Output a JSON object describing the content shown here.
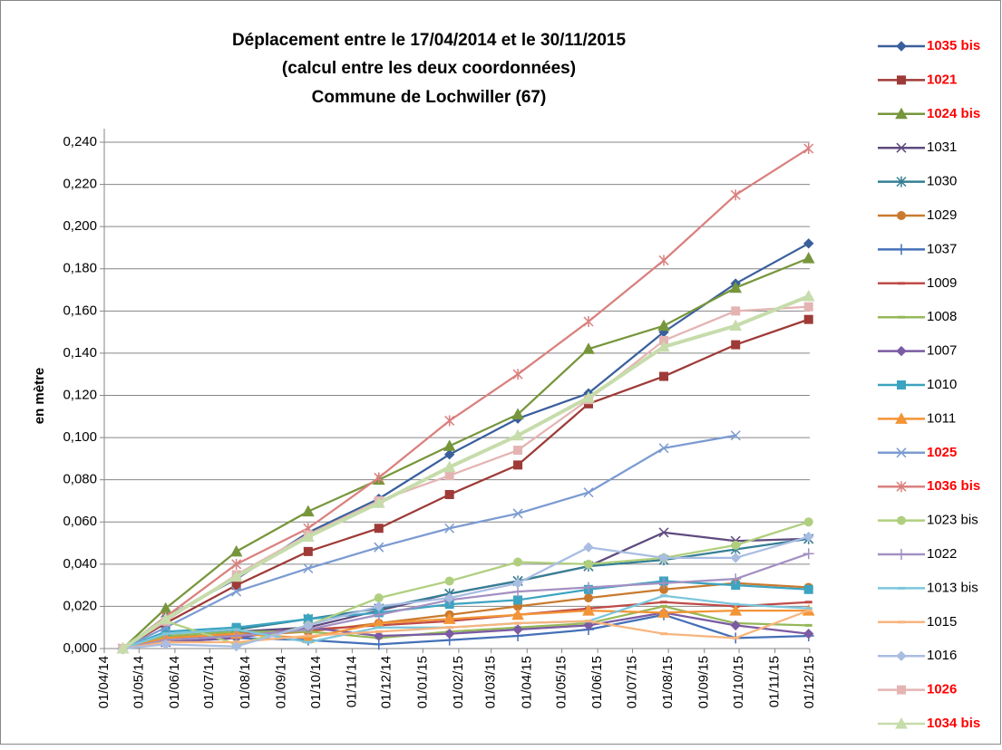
{
  "chart_data": {
    "type": "line",
    "title_lines": [
      "Déplacement entre le 17/04/2014 et le 30/11/2015",
      "(calcul entre les deux coordonnées)",
      "Commune de Lochwiller (67)"
    ],
    "y_label": "en mètre",
    "x": [
      "2014-04-17",
      "2014-05-24",
      "2014-07-24",
      "2014-09-24",
      "2014-11-24",
      "2015-01-24",
      "2015-03-24",
      "2015-05-24",
      "2015-07-28",
      "2015-09-28",
      "2015-11-30"
    ],
    "xlim": [
      "2014-04-01",
      "2015-12-01"
    ],
    "xticks": [
      {
        "value": "2014-04-01",
        "label": "01/04/14"
      },
      {
        "value": "2014-05-01",
        "label": "01/05/14"
      },
      {
        "value": "2014-06-01",
        "label": "01/06/14"
      },
      {
        "value": "2014-07-01",
        "label": "01/07/14"
      },
      {
        "value": "2014-08-01",
        "label": "01/08/14"
      },
      {
        "value": "2014-09-01",
        "label": "01/09/14"
      },
      {
        "value": "2014-10-01",
        "label": "01/10/14"
      },
      {
        "value": "2014-11-01",
        "label": "01/11/14"
      },
      {
        "value": "2014-12-01",
        "label": "01/12/14"
      },
      {
        "value": "2015-01-01",
        "label": "01/01/15"
      },
      {
        "value": "2015-02-01",
        "label": "01/02/15"
      },
      {
        "value": "2015-03-01",
        "label": "01/03/15"
      },
      {
        "value": "2015-04-01",
        "label": "01/04/15"
      },
      {
        "value": "2015-05-01",
        "label": "01/05/15"
      },
      {
        "value": "2015-06-01",
        "label": "01/06/15"
      },
      {
        "value": "2015-07-01",
        "label": "01/07/15"
      },
      {
        "value": "2015-08-01",
        "label": "01/08/15"
      },
      {
        "value": "2015-09-01",
        "label": "01/09/15"
      },
      {
        "value": "2015-10-01",
        "label": "01/10/15"
      },
      {
        "value": "2015-11-01",
        "label": "01/11/15"
      },
      {
        "value": "2015-12-01",
        "label": "01/12/15"
      }
    ],
    "ylim": [
      0,
      0.24
    ],
    "yticks": [
      {
        "value": 0,
        "label": "0,000"
      },
      {
        "value": 0.02,
        "label": "0,020"
      },
      {
        "value": 0.04,
        "label": "0,040"
      },
      {
        "value": 0.06,
        "label": "0,060"
      },
      {
        "value": 0.08,
        "label": "0,080"
      },
      {
        "value": 0.1,
        "label": "0,100"
      },
      {
        "value": 0.12,
        "label": "0,120"
      },
      {
        "value": 0.14,
        "label": "0,140"
      },
      {
        "value": 0.16,
        "label": "0,160"
      },
      {
        "value": 0.18,
        "label": "0,180"
      },
      {
        "value": 0.2,
        "label": "0,200"
      },
      {
        "value": 0.22,
        "label": "0,220"
      },
      {
        "value": 0.24,
        "label": "0,240"
      }
    ],
    "grid": true,
    "legend": "right",
    "series": [
      {
        "name": "1035 bis",
        "color": "#3a5f9c",
        "marker": "diamond",
        "label_color": "#ff0000",
        "values": [
          0,
          0.015,
          0.033,
          0.055,
          0.071,
          0.092,
          0.109,
          0.121,
          0.15,
          0.173,
          0.192
        ]
      },
      {
        "name": "1021",
        "color": "#9e3a37",
        "marker": "square",
        "label_color": "#ff0000",
        "values": [
          0,
          0.012,
          0.03,
          0.046,
          0.057,
          0.073,
          0.087,
          0.116,
          0.129,
          0.144,
          0.156
        ]
      },
      {
        "name": "1024 bis",
        "color": "#77963c",
        "marker": "triangle",
        "label_color": "#ff0000",
        "values": [
          0,
          0.019,
          0.046,
          0.065,
          0.08,
          0.096,
          0.111,
          0.142,
          0.153,
          0.171,
          0.185
        ]
      },
      {
        "name": "1031",
        "color": "#5e4a7e",
        "marker": "x",
        "values": [
          0,
          0.003,
          0.008,
          0.01,
          0.018,
          0.026,
          0.032,
          0.039,
          0.055,
          0.051,
          0.052
        ]
      },
      {
        "name": "1030",
        "color": "#357f94",
        "marker": "star",
        "values": [
          0,
          0.005,
          0.009,
          0.014,
          0.019,
          0.026,
          0.032,
          0.039,
          0.042,
          0.047,
          0.052
        ]
      },
      {
        "name": "1029",
        "color": "#c97a2e",
        "marker": "circle",
        "values": [
          0,
          0.004,
          0.006,
          0.008,
          0.012,
          0.016,
          0.02,
          0.024,
          0.028,
          0.031,
          0.029
        ]
      },
      {
        "name": "1037",
        "color": "#4370b7",
        "marker": "plus",
        "values": [
          0,
          0.003,
          0.005,
          0.004,
          0.002,
          0.004,
          0.006,
          0.009,
          0.016,
          0.005,
          0.006
        ]
      },
      {
        "name": "1009",
        "color": "#bf4b48",
        "marker": "dash",
        "values": [
          0,
          0.004,
          0.007,
          0.009,
          0.011,
          0.013,
          0.016,
          0.019,
          0.022,
          0.02,
          0.022
        ]
      },
      {
        "name": "1008",
        "color": "#95b85a",
        "marker": "dash",
        "values": [
          0,
          0.006,
          0.008,
          0.008,
          0.005,
          0.008,
          0.01,
          0.012,
          0.02,
          0.012,
          0.011
        ]
      },
      {
        "name": "1007",
        "color": "#7b5ba3",
        "marker": "diamond",
        "values": [
          0,
          0.003,
          0.005,
          0.01,
          0.006,
          0.007,
          0.009,
          0.011,
          0.017,
          0.011,
          0.007
        ]
      },
      {
        "name": "1010",
        "color": "#3ca4c0",
        "marker": "square",
        "values": [
          0,
          0.008,
          0.01,
          0.014,
          0.017,
          0.021,
          0.023,
          0.028,
          0.032,
          0.03,
          0.028
        ]
      },
      {
        "name": "1011",
        "color": "#f39436",
        "marker": "triangle",
        "values": [
          0,
          0.005,
          0.007,
          0.005,
          0.012,
          0.014,
          0.016,
          0.018,
          0.017,
          0.018,
          0.018
        ]
      },
      {
        "name": "1025",
        "color": "#7b9bd1",
        "marker": "x",
        "label_color": "#ff0000",
        "values": [
          0,
          0.01,
          0.027,
          0.038,
          0.048,
          0.057,
          0.064,
          0.074,
          0.095,
          0.101,
          null
        ]
      },
      {
        "name": "1036 bis",
        "color": "#d9807e",
        "marker": "star",
        "label_color": "#ff0000",
        "values": [
          0,
          0.015,
          0.04,
          0.057,
          0.081,
          0.108,
          0.13,
          0.155,
          0.184,
          0.215,
          0.237
        ]
      },
      {
        "name": "1023 bis",
        "color": "#b0cf7e",
        "marker": "circle",
        "values": [
          0,
          0.013,
          0.002,
          0.011,
          0.024,
          0.032,
          0.041,
          0.04,
          0.043,
          0.049,
          0.06
        ]
      },
      {
        "name": "1022",
        "color": "#a390c2",
        "marker": "plus",
        "values": [
          0,
          0.004,
          0.006,
          0.009,
          0.016,
          0.023,
          0.027,
          0.029,
          0.031,
          0.033,
          0.045
        ]
      },
      {
        "name": "1013 bis",
        "color": "#7cc6dc",
        "marker": "dash",
        "values": [
          0,
          0.007,
          0.009,
          0.003,
          0.01,
          0.01,
          0.012,
          0.013,
          0.025,
          0.021,
          0.019
        ]
      },
      {
        "name": "1015",
        "color": "#f8b47c",
        "marker": "dash",
        "values": [
          0,
          0.003,
          0.003,
          0.006,
          0.008,
          0.01,
          0.012,
          0.013,
          0.007,
          0.005,
          0.018
        ]
      },
      {
        "name": "1016",
        "color": "#a9bde2",
        "marker": "diamond",
        "values": [
          0,
          0.002,
          0.001,
          0.011,
          0.02,
          0.024,
          0.031,
          0.048,
          0.043,
          0.043,
          0.053
        ]
      },
      {
        "name": "1026",
        "color": "#e4b4b3",
        "marker": "square",
        "label_color": "#ff0000",
        "values": [
          0,
          0.013,
          0.035,
          0.054,
          0.07,
          0.082,
          0.094,
          0.118,
          0.146,
          0.16,
          0.162
        ]
      },
      {
        "name": "1034 bis",
        "color": "#c6dcab",
        "marker": "triangle",
        "label_color": "#ff0000",
        "values": [
          0,
          0.014,
          0.034,
          0.053,
          0.069,
          0.086,
          0.101,
          0.119,
          0.143,
          0.153,
          0.167
        ]
      }
    ]
  }
}
